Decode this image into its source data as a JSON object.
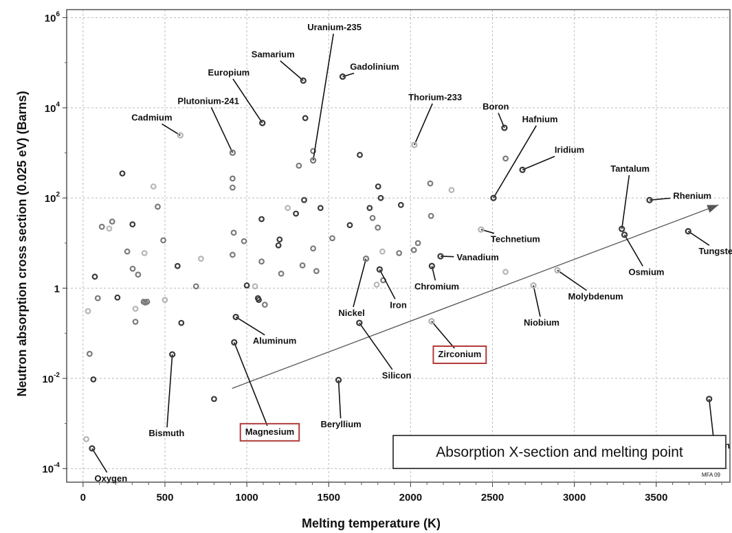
{
  "chart_data": {
    "type": "scatter",
    "title": "",
    "legend_note": "Absorption X-section and melting point",
    "credit": "MFA 09",
    "xlabel": "Melting temperature (K)",
    "ylabel": "Neutron absorption cross section (0.025 eV) (Barns)",
    "xlim": [
      -100,
      3950
    ],
    "ylim": [
      5e-05,
      1500000
    ],
    "yscale": "log",
    "grid": true,
    "x_ticks": [
      "0",
      "500",
      "1000",
      "1500",
      "2000",
      "2500",
      "3000",
      "3500"
    ],
    "y_ticks": [
      {
        "base": "10",
        "exp": "-4",
        "value": 0.0001
      },
      {
        "base": "10",
        "exp": "-2",
        "value": 0.01
      },
      {
        "base": "1",
        "exp": "",
        "value": 1
      },
      {
        "base": "10",
        "exp": "2",
        "value": 100
      },
      {
        "base": "10",
        "exp": "4",
        "value": 10000
      },
      {
        "base": "10",
        "exp": "6",
        "value": 1000000
      }
    ],
    "trend_arrow": {
      "from": [
        910,
        0.006
      ],
      "to": [
        3880,
        70
      ]
    },
    "labeled_points": [
      {
        "name": "Oxygen",
        "x": 55,
        "y": 0.00028,
        "label_x": 170,
        "label_y": 6e-05,
        "boxed": false,
        "shade": "dark"
      },
      {
        "name": "Bismuth",
        "x": 545,
        "y": 0.034,
        "label_x": 510,
        "label_y": 0.0006,
        "boxed": false,
        "shade": "dark"
      },
      {
        "name": "Magnesium",
        "x": 923,
        "y": 0.063,
        "label_x": 1140,
        "label_y": 0.00065,
        "boxed": true,
        "shade": "dark"
      },
      {
        "name": "Aluminum",
        "x": 933,
        "y": 0.23,
        "label_x": 1170,
        "label_y": 0.067,
        "boxed": false,
        "shade": "dark"
      },
      {
        "name": "Cadmium",
        "x": 594,
        "y": 2450,
        "label_x": 420,
        "label_y": 6000,
        "boxed": false,
        "shade": "light"
      },
      {
        "name": "Plutonium-241",
        "x": 913,
        "y": 1010,
        "label_x": 765,
        "label_y": 14000,
        "boxed": false,
        "shade": "mid"
      },
      {
        "name": "Europium",
        "x": 1095,
        "y": 4600,
        "label_x": 890,
        "label_y": 60000,
        "boxed": false,
        "shade": "dark"
      },
      {
        "name": "Samarium",
        "x": 1345,
        "y": 40000,
        "label_x": 1160,
        "label_y": 150000,
        "boxed": false,
        "shade": "dark"
      },
      {
        "name": "Uranium-235",
        "x": 1405,
        "y": 680,
        "label_x": 1535,
        "label_y": 600000,
        "boxed": false,
        "shade": "mid"
      },
      {
        "name": "Gadolinium",
        "x": 1585,
        "y": 49000,
        "label_x": 1780,
        "label_y": 80000,
        "boxed": false,
        "shade": "dark"
      },
      {
        "name": "Thorium-233",
        "x": 2023,
        "y": 1500,
        "label_x": 2150,
        "label_y": 17000,
        "boxed": false,
        "shade": "light"
      },
      {
        "name": "Beryllium",
        "x": 1560,
        "y": 0.0092,
        "label_x": 1575,
        "label_y": 0.00095,
        "boxed": false,
        "shade": "dark"
      },
      {
        "name": "Nickel",
        "x": 1728,
        "y": 4.5,
        "label_x": 1640,
        "label_y": 0.28,
        "boxed": false,
        "shade": "mid"
      },
      {
        "name": "Iron",
        "x": 1811,
        "y": 2.6,
        "label_x": 1925,
        "label_y": 0.42,
        "boxed": false,
        "shade": "dark"
      },
      {
        "name": "Silicon",
        "x": 1687,
        "y": 0.17,
        "label_x": 1915,
        "label_y": 0.0115,
        "boxed": false,
        "shade": "dark"
      },
      {
        "name": "Zirconium",
        "x": 2128,
        "y": 0.185,
        "label_x": 2300,
        "label_y": 0.034,
        "boxed": true,
        "shade": "light"
      },
      {
        "name": "Chromium",
        "x": 2130,
        "y": 3.1,
        "label_x": 2160,
        "label_y": 1.08,
        "boxed": false,
        "shade": "dark"
      },
      {
        "name": "Vanadium",
        "x": 2183,
        "y": 5.1,
        "label_x": 2410,
        "label_y": 4.8,
        "boxed": false,
        "shade": "dark"
      },
      {
        "name": "Technetium",
        "x": 2430,
        "y": 20,
        "label_x": 2640,
        "label_y": 12,
        "boxed": false,
        "shade": "light"
      },
      {
        "name": "Boron",
        "x": 2573,
        "y": 3600,
        "label_x": 2520,
        "label_y": 10500,
        "boxed": false,
        "shade": "dark"
      },
      {
        "name": "Hafnium",
        "x": 2506,
        "y": 100,
        "label_x": 2790,
        "label_y": 5500,
        "boxed": false,
        "shade": "dark"
      },
      {
        "name": "Iridium",
        "x": 2683,
        "y": 420,
        "label_x": 2970,
        "label_y": 1150,
        "boxed": false,
        "shade": "dark"
      },
      {
        "name": "Niobium",
        "x": 2750,
        "y": 1.15,
        "label_x": 2800,
        "label_y": 0.17,
        "boxed": false,
        "shade": "light"
      },
      {
        "name": "Molybdenum",
        "x": 2896,
        "y": 2.5,
        "label_x": 3130,
        "label_y": 0.65,
        "boxed": false,
        "shade": "light"
      },
      {
        "name": "Tantalum",
        "x": 3290,
        "y": 20.6,
        "label_x": 3340,
        "label_y": 440,
        "boxed": false,
        "shade": "dark"
      },
      {
        "name": "Osmium",
        "x": 3306,
        "y": 15.3,
        "label_x": 3440,
        "label_y": 2.25,
        "boxed": false,
        "shade": "dark"
      },
      {
        "name": "Rhenium",
        "x": 3459,
        "y": 89.7,
        "label_x": 3720,
        "label_y": 110,
        "boxed": false,
        "shade": "dark"
      },
      {
        "name": "Tungsten",
        "x": 3695,
        "y": 18.3,
        "label_x": 3880,
        "label_y": 6.5,
        "boxed": false,
        "shade": "dark"
      },
      {
        "name": "Carbon",
        "x": 3823,
        "y": 0.0035,
        "label_x": 3855,
        "label_y": 0.00032,
        "boxed": false,
        "shade": "dark"
      }
    ],
    "other_points": [
      {
        "x": 20,
        "y": 0.00045,
        "shade": "light"
      },
      {
        "x": 30,
        "y": 0.31,
        "shade": "light"
      },
      {
        "x": 40,
        "y": 0.035,
        "shade": "mid"
      },
      {
        "x": 63,
        "y": 0.0095,
        "shade": "dark"
      },
      {
        "x": 72,
        "y": 1.8,
        "shade": "dark"
      },
      {
        "x": 90,
        "y": 0.6,
        "shade": "mid"
      },
      {
        "x": 115,
        "y": 23,
        "shade": "mid"
      },
      {
        "x": 160,
        "y": 21,
        "shade": "light"
      },
      {
        "x": 178,
        "y": 30,
        "shade": "mid"
      },
      {
        "x": 210,
        "y": 0.62,
        "shade": "dark"
      },
      {
        "x": 240,
        "y": 350,
        "shade": "dark"
      },
      {
        "x": 270,
        "y": 6.5,
        "shade": "mid"
      },
      {
        "x": 302,
        "y": 26,
        "shade": "dark"
      },
      {
        "x": 303,
        "y": 2.7,
        "shade": "mid"
      },
      {
        "x": 320,
        "y": 0.35,
        "shade": "light"
      },
      {
        "x": 320,
        "y": 0.18,
        "shade": "mid"
      },
      {
        "x": 336,
        "y": 2.0,
        "shade": "mid"
      },
      {
        "x": 370,
        "y": 0.5,
        "shade": "mid"
      },
      {
        "x": 375,
        "y": 6.0,
        "shade": "light"
      },
      {
        "x": 380,
        "y": 0.48,
        "shade": "mid"
      },
      {
        "x": 391,
        "y": 0.5,
        "shade": "mid"
      },
      {
        "x": 430,
        "y": 180,
        "shade": "light"
      },
      {
        "x": 456,
        "y": 64,
        "shade": "mid"
      },
      {
        "x": 490,
        "y": 11.5,
        "shade": "mid"
      },
      {
        "x": 500,
        "y": 0.55,
        "shade": "light"
      },
      {
        "x": 577,
        "y": 3.1,
        "shade": "dark"
      },
      {
        "x": 600,
        "y": 0.17,
        "shade": "dark"
      },
      {
        "x": 690,
        "y": 1.1,
        "shade": "mid"
      },
      {
        "x": 720,
        "y": 4.5,
        "shade": "light"
      },
      {
        "x": 800,
        "y": 0.0035,
        "shade": "dark"
      },
      {
        "x": 913,
        "y": 5.5,
        "shade": "mid"
      },
      {
        "x": 913,
        "y": 270,
        "shade": "mid"
      },
      {
        "x": 913,
        "y": 170,
        "shade": "mid"
      },
      {
        "x": 920,
        "y": 17,
        "shade": "mid"
      },
      {
        "x": 983,
        "y": 11,
        "shade": "mid"
      },
      {
        "x": 1000,
        "y": 1.15,
        "shade": "dark"
      },
      {
        "x": 1050,
        "y": 1.1,
        "shade": "light"
      },
      {
        "x": 1068,
        "y": 0.6,
        "shade": "dark"
      },
      {
        "x": 1073,
        "y": 0.55,
        "shade": "dark"
      },
      {
        "x": 1090,
        "y": 34,
        "shade": "dark"
      },
      {
        "x": 1090,
        "y": 3.9,
        "shade": "mid"
      },
      {
        "x": 1110,
        "y": 0.43,
        "shade": "mid"
      },
      {
        "x": 1193,
        "y": 8.9,
        "shade": "dark"
      },
      {
        "x": 1200,
        "y": 12,
        "shade": "dark"
      },
      {
        "x": 1210,
        "y": 2.1,
        "shade": "mid"
      },
      {
        "x": 1250,
        "y": 60,
        "shade": "light"
      },
      {
        "x": 1300,
        "y": 45,
        "shade": "dark"
      },
      {
        "x": 1318,
        "y": 520,
        "shade": "mid"
      },
      {
        "x": 1340,
        "y": 3.2,
        "shade": "mid"
      },
      {
        "x": 1350,
        "y": 90,
        "shade": "dark"
      },
      {
        "x": 1357,
        "y": 5900,
        "shade": "dark"
      },
      {
        "x": 1405,
        "y": 7.6,
        "shade": "mid"
      },
      {
        "x": 1405,
        "y": 1100,
        "shade": "mid"
      },
      {
        "x": 1425,
        "y": 2.4,
        "shade": "mid"
      },
      {
        "x": 1450,
        "y": 60,
        "shade": "dark"
      },
      {
        "x": 1522,
        "y": 12.8,
        "shade": "mid"
      },
      {
        "x": 1629,
        "y": 25,
        "shade": "dark"
      },
      {
        "x": 1690,
        "y": 900,
        "shade": "dark"
      },
      {
        "x": 1750,
        "y": 60,
        "shade": "dark"
      },
      {
        "x": 1768,
        "y": 36,
        "shade": "mid"
      },
      {
        "x": 1793,
        "y": 1.2,
        "shade": "light"
      },
      {
        "x": 1800,
        "y": 22,
        "shade": "mid"
      },
      {
        "x": 1802,
        "y": 180,
        "shade": "dark"
      },
      {
        "x": 1818,
        "y": 100,
        "shade": "dark"
      },
      {
        "x": 1828,
        "y": 6.5,
        "shade": "light"
      },
      {
        "x": 1833,
        "y": 1.5,
        "shade": "mid"
      },
      {
        "x": 1930,
        "y": 6,
        "shade": "mid"
      },
      {
        "x": 1941,
        "y": 70,
        "shade": "dark"
      },
      {
        "x": 2020,
        "y": 7,
        "shade": "mid"
      },
      {
        "x": 2045,
        "y": 10,
        "shade": "mid"
      },
      {
        "x": 2120,
        "y": 210,
        "shade": "mid"
      },
      {
        "x": 2125,
        "y": 40,
        "shade": "mid"
      },
      {
        "x": 2250,
        "y": 150,
        "shade": "light"
      },
      {
        "x": 2580,
        "y": 2.3,
        "shade": "light"
      },
      {
        "x": 2580,
        "y": 750,
        "shade": "mid"
      }
    ]
  }
}
